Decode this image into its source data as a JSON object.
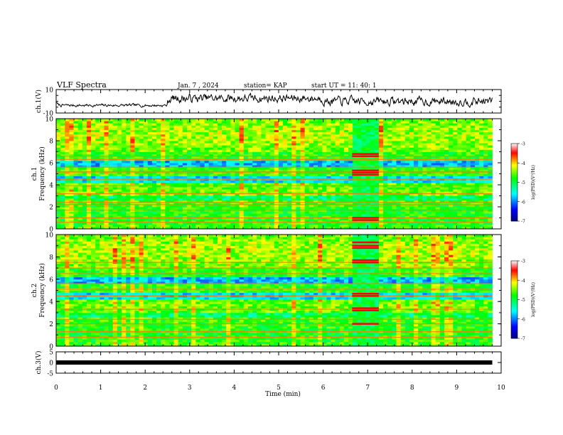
{
  "header": {
    "title": "VLF Spectra",
    "date": "Jan. 7 , 2024",
    "station": "station= KAP",
    "start": "start UT = 11: 40: 1"
  },
  "chart_data": [
    {
      "type": "line",
      "panel": "ch1-waveform",
      "ylabel": "ch.1(V)",
      "ylim": [
        -10,
        10
      ],
      "yticks": [
        "10",
        "-10"
      ],
      "description_x_range_min": [
        0,
        9.8
      ]
    },
    {
      "type": "heatmap",
      "panel": "ch1-spectrogram",
      "ylabel": "ch.1 Frequency (kHz)",
      "ylim": [
        0,
        10
      ],
      "yticks": [
        "0",
        "2",
        "4",
        "6",
        "8",
        "10"
      ],
      "x_range_min": [
        0,
        9.8
      ],
      "band_lines_khz": [
        0.6,
        1.0,
        1.7,
        2.2,
        2.4,
        3.2,
        3.9,
        4.5,
        5.1,
        5.2,
        5.6,
        6.3,
        6.6
      ],
      "burst": {
        "t_start_min": 6.65,
        "t_end_min": 7.25,
        "lines_khz": [
          0.8,
          1.0,
          4.9,
          5.1,
          5.3,
          6.6,
          6.8
        ]
      }
    },
    {
      "type": "heatmap",
      "panel": "ch2-spectrogram",
      "ylabel": "ch.2 Frequency (kHz)",
      "ylim": [
        0,
        10
      ],
      "yticks": [
        "0",
        "2",
        "4",
        "6",
        "8",
        "10"
      ],
      "x_range_min": [
        0,
        9.8
      ],
      "band_lines_khz": [
        0.8,
        1.3,
        2.0,
        2.4,
        3.3,
        4.5,
        5.1,
        5.6,
        6.5,
        7.0,
        7.5
      ],
      "burst": {
        "t_start_min": 6.65,
        "t_end_min": 7.25,
        "lines_khz": [
          2.0,
          3.2,
          3.4,
          4.5,
          4.7,
          7.5,
          7.7,
          8.8,
          9.0,
          9.3
        ]
      }
    },
    {
      "type": "line",
      "panel": "ch3-waveform",
      "ylabel": "ch.3(V)",
      "ylim": [
        -5,
        5
      ],
      "yticks": [
        "5",
        "0",
        "-5"
      ],
      "level_v": 0
    }
  ],
  "xaxis": {
    "label": "Time (min)",
    "ticks": [
      "0",
      "1",
      "2",
      "3",
      "4",
      "5",
      "6",
      "7",
      "8",
      "9",
      "10"
    ],
    "range": [
      0,
      10
    ]
  },
  "colorbar": {
    "label": "log(PSD)(V²/Hz)",
    "ticks": [
      "-3",
      "-4",
      "-5",
      "-6",
      "-7"
    ],
    "range": [
      -7,
      -3
    ],
    "colors": [
      "#000080",
      "#0000ff",
      "#00ffff",
      "#00ff00",
      "#ffff00",
      "#ff0000",
      "#ffffff"
    ]
  }
}
